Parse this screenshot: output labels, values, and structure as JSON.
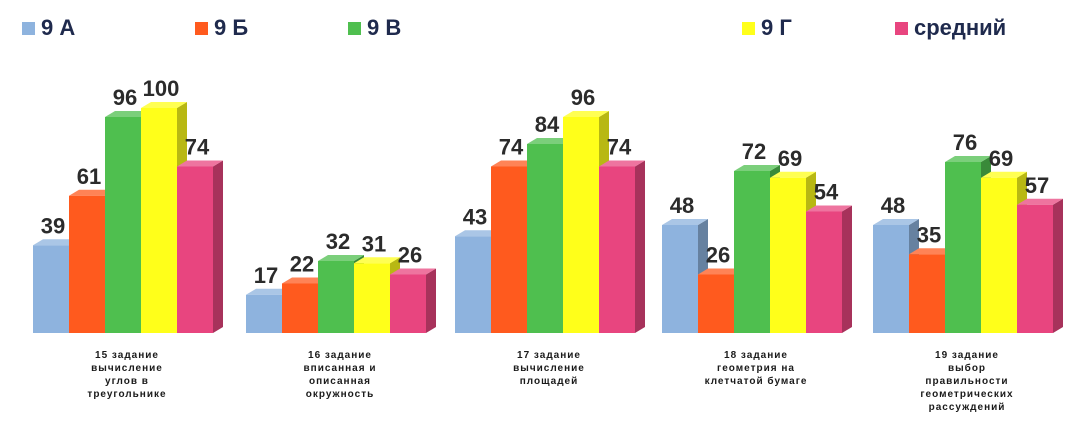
{
  "chart_data": {
    "type": "bar",
    "title": "",
    "xlabel": "",
    "ylabel": "",
    "ylim": [
      0,
      100
    ],
    "grid": false,
    "legend_position": "top",
    "categories": [
      "15 задание вычисление углов в треугольнике",
      "16 задание вписанная и описанная окружность",
      "17 задание вычисление площадей",
      "18 задание геометрия на клетчатой бумаге",
      "19 задание выбор правильности геометрических рассуждений"
    ],
    "category_lines": [
      [
        "15 задание",
        "вычисление",
        "углов в",
        "треугольнике"
      ],
      [
        "16 задание",
        "вписанная и",
        "описанная",
        "окружность"
      ],
      [
        "17 задание",
        "вычисление",
        "площадей"
      ],
      [
        "18 задание",
        "геометрия на",
        "клетчатой бумаге"
      ],
      [
        "19 задание",
        "выбор",
        "правильности",
        "геометрических",
        "рассуждений"
      ]
    ],
    "series": [
      {
        "name": "9 А",
        "color": "#8eb3de",
        "values": [
          39,
          17,
          43,
          48,
          48
        ]
      },
      {
        "name": "9 Б",
        "color": "#ff5a1e",
        "values": [
          61,
          22,
          74,
          26,
          35
        ]
      },
      {
        "name": "9 В",
        "color": "#4fbf4f",
        "values": [
          96,
          32,
          84,
          72,
          76
        ]
      },
      {
        "name": "9 Г",
        "color": "#ffff1a",
        "values": [
          100,
          31,
          96,
          69,
          69
        ]
      },
      {
        "name": "средний",
        "color": "#e8457f",
        "values": [
          74,
          26,
          74,
          54,
          57
        ]
      }
    ]
  }
}
